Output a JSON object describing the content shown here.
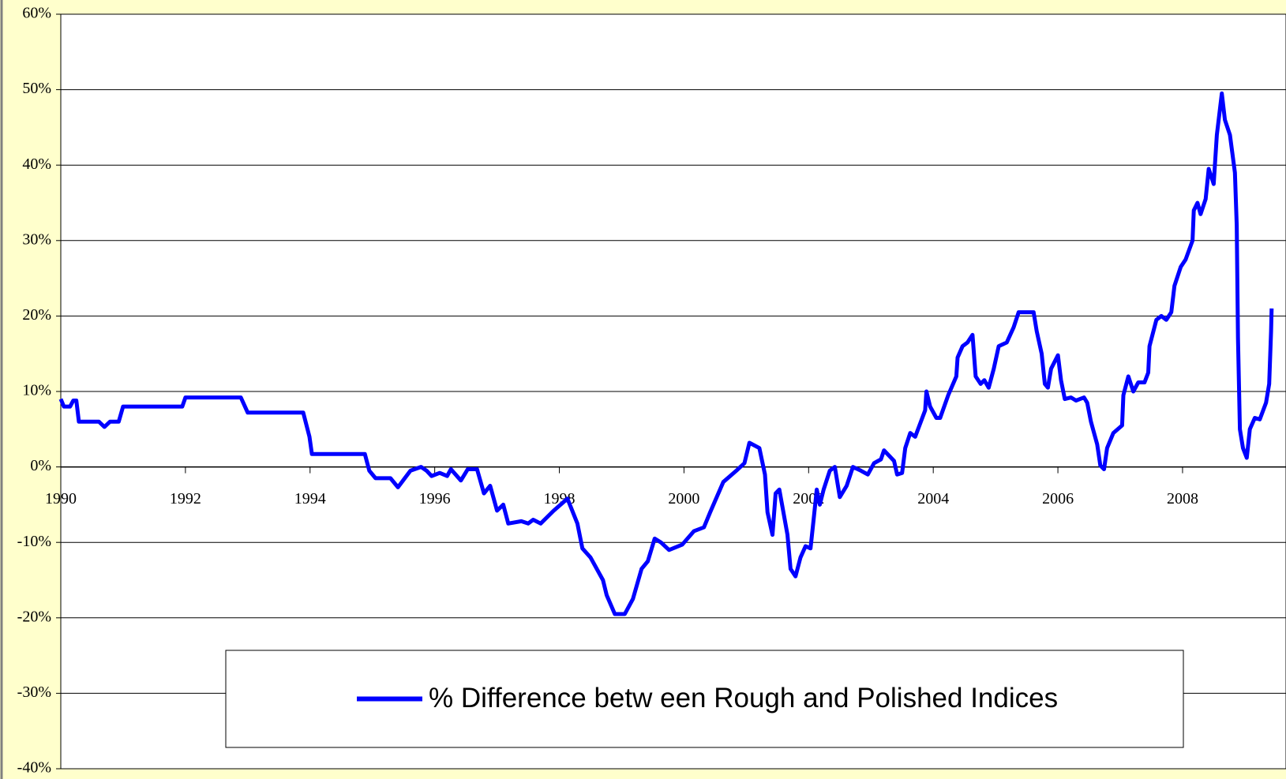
{
  "chart_data": {
    "type": "line",
    "x": [
      1990.0,
      1990.05,
      1990.15,
      1990.2,
      1990.25,
      1990.29,
      1990.61,
      1990.7,
      1990.79,
      1990.93,
      1991.0,
      1991.95,
      1992.0,
      1992.89,
      1993.0,
      1993.89,
      1993.99,
      1994.03,
      1994.88,
      1994.95,
      1995.05,
      1995.29,
      1995.41,
      1995.61,
      1995.78,
      1995.87,
      1995.95,
      1996.08,
      1996.2,
      1996.26,
      1996.42,
      1996.53,
      1996.68,
      1996.79,
      1996.89,
      1997.0,
      1997.1,
      1997.18,
      1997.39,
      1997.5,
      1997.58,
      1997.7,
      1997.91,
      1998.13,
      1998.29,
      1998.37,
      1998.5,
      1998.7,
      1998.76,
      1998.89,
      1999.05,
      1999.18,
      1999.32,
      1999.42,
      1999.53,
      1999.63,
      1999.76,
      1999.97,
      2000.16,
      2000.32,
      2000.42,
      2000.63,
      2000.84,
      2000.97,
      2001.05,
      2001.21,
      2001.3,
      2001.34,
      2001.42,
      2001.47,
      2001.53,
      2001.66,
      2001.71,
      2001.79,
      2001.87,
      2001.95,
      2002.03,
      2002.08,
      2002.13,
      2002.18,
      2002.24,
      2002.34,
      2002.42,
      2002.5,
      2002.61,
      2002.71,
      2002.84,
      2002.95,
      2003.05,
      2003.16,
      2003.21,
      2003.37,
      2003.42,
      2003.5,
      2003.55,
      2003.63,
      2003.71,
      2003.87,
      2003.89,
      2003.95,
      2004.05,
      2004.11,
      2004.24,
      2004.37,
      2004.39,
      2004.47,
      2004.55,
      2004.63,
      2004.68,
      2004.76,
      2004.82,
      2004.89,
      2004.97,
      2005.05,
      2005.18,
      2005.29,
      2005.37,
      2005.61,
      2005.66,
      2005.74,
      2005.79,
      2005.84,
      2005.89,
      2006.0,
      2006.05,
      2006.11,
      2006.21,
      2006.29,
      2006.42,
      2006.47,
      2006.53,
      2006.63,
      2006.68,
      2006.74,
      2006.79,
      2006.89,
      2007.03,
      2007.05,
      2007.13,
      2007.21,
      2007.29,
      2007.39,
      2007.45,
      2007.47,
      2007.58,
      2007.66,
      2007.74,
      2007.82,
      2007.87,
      2007.97,
      2008.05,
      2008.16,
      2008.18,
      2008.24,
      2008.29,
      2008.37,
      2008.42,
      2008.5,
      2008.55,
      2008.63,
      2008.68,
      2008.76,
      2008.84,
      2008.87,
      2008.89,
      2008.92,
      2008.97,
      2009.03,
      2009.08,
      2009.16,
      2009.24,
      2009.34,
      2009.39,
      2009.42,
      2009.43
    ],
    "series": [
      {
        "name": "% Difference betw een Rough and Polished Indices",
        "color": "#0000ff",
        "values": [
          9,
          8,
          8,
          8.8,
          8.8,
          6,
          6,
          5.3,
          6,
          6,
          8,
          8,
          9.2,
          9.2,
          7.2,
          7.2,
          4,
          1.7,
          1.7,
          -0.5,
          -1.5,
          -1.5,
          -2.7,
          -0.5,
          0,
          -0.5,
          -1.2,
          -0.8,
          -1.2,
          -0.3,
          -1.8,
          -0.3,
          -0.3,
          -3.5,
          -2.5,
          -5.8,
          -5,
          -7.5,
          -7.2,
          -7.5,
          -7,
          -7.5,
          -5.8,
          -4.2,
          -7.5,
          -10.8,
          -12,
          -15,
          -17,
          -19.5,
          -19.5,
          -17.5,
          -13.5,
          -12.5,
          -9.5,
          -10,
          -11,
          -10.3,
          -8.5,
          -8,
          -6,
          -2,
          -0.5,
          0.5,
          3.2,
          2.5,
          -1,
          -6,
          -9,
          -3.5,
          -3,
          -9,
          -13.5,
          -14.5,
          -12,
          -10.5,
          -10.8,
          -7,
          -3,
          -5,
          -3,
          -0.5,
          0,
          -4,
          -2.5,
          0,
          -0.5,
          -1,
          0.5,
          1,
          2.2,
          0.8,
          -1,
          -0.8,
          2.5,
          4.5,
          4,
          7.5,
          10,
          8,
          6.5,
          6.5,
          9.5,
          12,
          14.5,
          16,
          16.5,
          17.5,
          12,
          11,
          11.5,
          10.5,
          13,
          16,
          16.5,
          18.5,
          20.5,
          20.5,
          18,
          15,
          11,
          10.5,
          13,
          14.8,
          11.5,
          9,
          9.2,
          8.8,
          9.2,
          8.5,
          6,
          3,
          0.2,
          -0.3,
          2.5,
          4.5,
          5.5,
          9.5,
          12,
          10,
          11.2,
          11.2,
          12.5,
          16,
          19.5,
          20,
          19.5,
          20.5,
          24,
          26.5,
          27.5,
          30,
          34,
          35,
          33.5,
          35.5,
          39.5,
          37.5,
          44,
          49.5,
          46,
          44,
          39,
          32,
          17,
          5,
          2.5,
          1.2,
          5,
          6.5,
          6.3,
          8.5,
          11,
          18,
          21
        ]
      }
    ],
    "xlim": [
      1990,
      2009.66
    ],
    "xticks": [
      1990,
      1992,
      1994,
      1996,
      1998,
      2000,
      2002,
      2004,
      2006,
      2008
    ],
    "ylim": [
      -40,
      60
    ],
    "yticks": [
      {
        "value": -40,
        "label": "-40%"
      },
      {
        "value": -30,
        "label": "-30%"
      },
      {
        "value": -20,
        "label": "-20%"
      },
      {
        "value": -10,
        "label": "-10%"
      },
      {
        "value": 0,
        "label": "0%"
      },
      {
        "value": 10,
        "label": "10%"
      },
      {
        "value": 20,
        "label": "20%"
      },
      {
        "value": 30,
        "label": "30%"
      },
      {
        "value": 40,
        "label": "40%"
      },
      {
        "value": 50,
        "label": "50%"
      },
      {
        "value": 60,
        "label": "60%"
      }
    ],
    "grid": true,
    "legend": "bottom"
  }
}
